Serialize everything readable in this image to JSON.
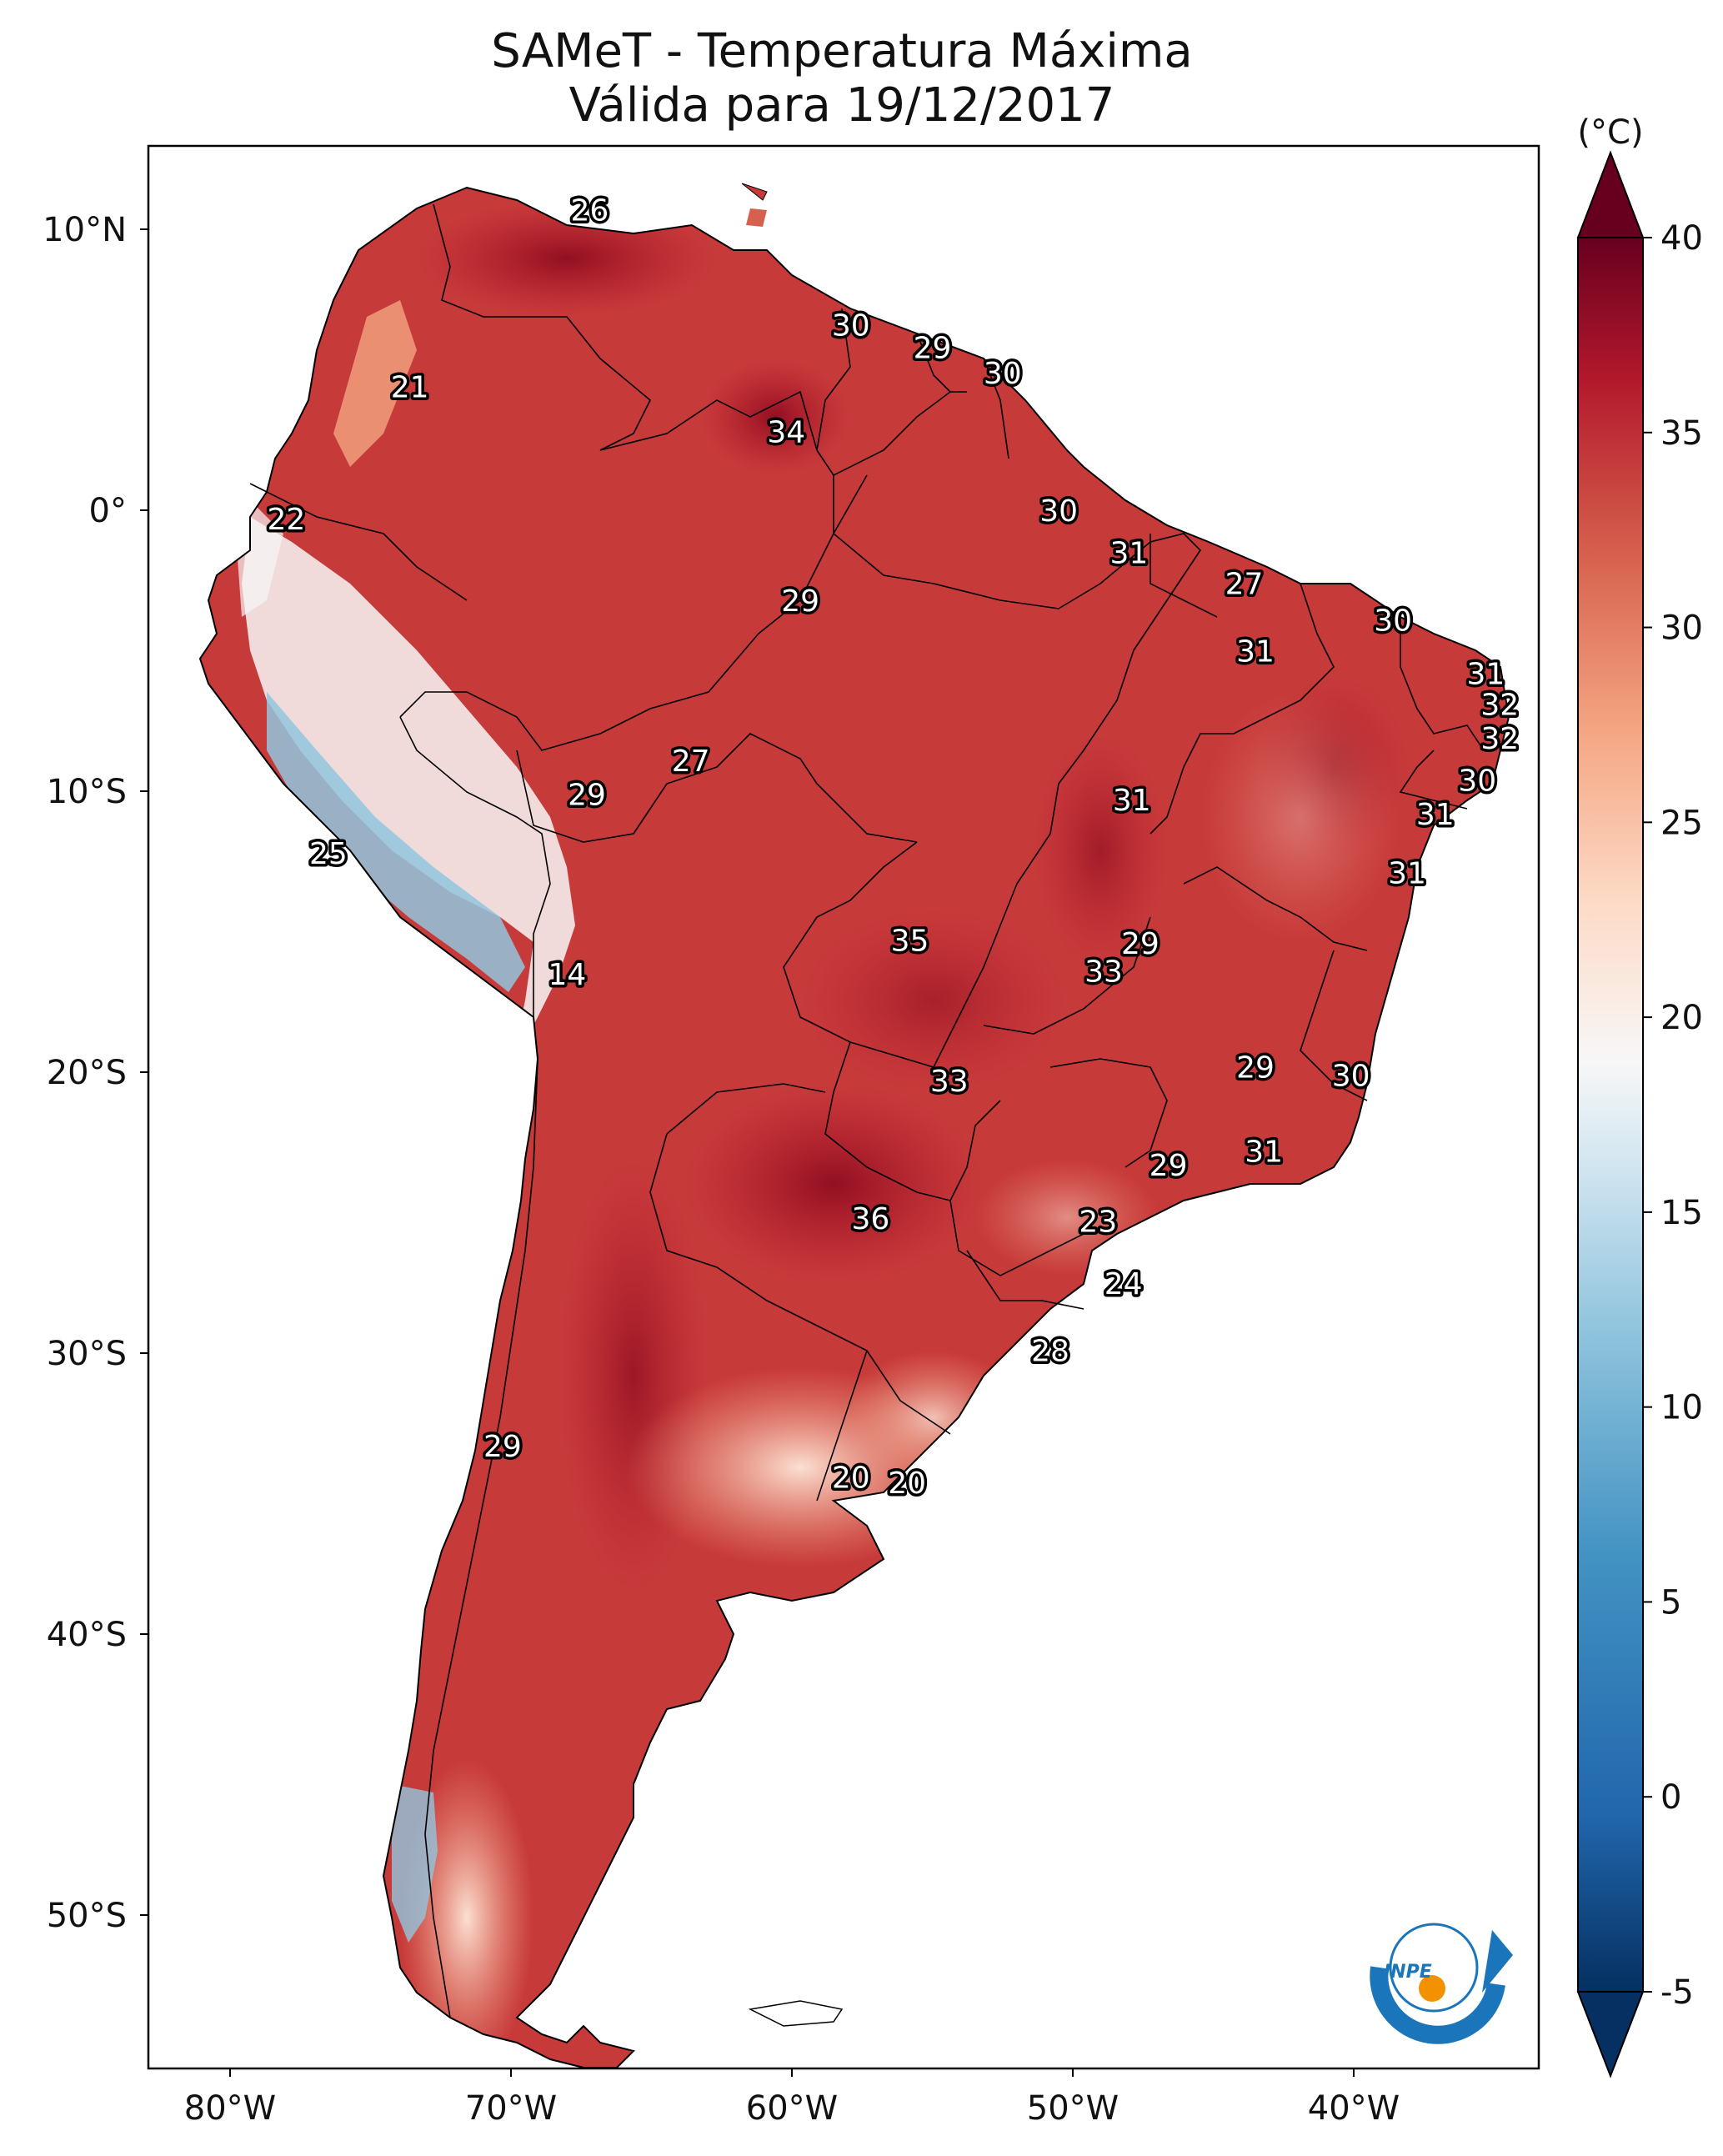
{
  "title_line1": "SAMeT - Temperatura Máxima",
  "title_line2": "Válida para 19/12/2017",
  "colorbar": {
    "unit": "(°C)",
    "ticks": [
      "40",
      "35",
      "30",
      "25",
      "20",
      "15",
      "10",
      "5",
      "0",
      "-5"
    ],
    "range": [
      -5,
      40
    ],
    "colormap": "RdBu_r",
    "colors": {
      "low": "#053061",
      "mid": "#f7f7f7",
      "high": "#67001f"
    }
  },
  "lon_ticks": [
    "80°W",
    "70°W",
    "60°W",
    "50°W",
    "40°W"
  ],
  "lat_ticks": [
    "10°N",
    "0°",
    "10°S",
    "20°S",
    "30°S",
    "40°S",
    "50°S"
  ],
  "logo_text": "INPE",
  "station_labels": [
    {
      "text": "26",
      "lon": -67.2,
      "lat": 10.7
    },
    {
      "text": "21",
      "lon": -73.6,
      "lat": 4.4
    },
    {
      "text": "30",
      "lon": -57.9,
      "lat": 6.6
    },
    {
      "text": "29",
      "lon": -55.0,
      "lat": 5.8
    },
    {
      "text": "30",
      "lon": -52.5,
      "lat": 4.9
    },
    {
      "text": "34",
      "lon": -60.2,
      "lat": 2.8
    },
    {
      "text": "22",
      "lon": -78.0,
      "lat": -0.3
    },
    {
      "text": "30",
      "lon": -50.5,
      "lat": 0.0
    },
    {
      "text": "31",
      "lon": -48.0,
      "lat": -1.5
    },
    {
      "text": "29",
      "lon": -59.7,
      "lat": -3.2
    },
    {
      "text": "27",
      "lon": -43.9,
      "lat": -2.6
    },
    {
      "text": "30",
      "lon": -38.6,
      "lat": -3.9
    },
    {
      "text": "31",
      "lon": -43.5,
      "lat": -5.0
    },
    {
      "text": "31",
      "lon": -35.3,
      "lat": -5.8
    },
    {
      "text": "32",
      "lon": -34.8,
      "lat": -6.9
    },
    {
      "text": "32",
      "lon": -34.8,
      "lat": -8.1
    },
    {
      "text": "27",
      "lon": -63.6,
      "lat": -8.9
    },
    {
      "text": "29",
      "lon": -67.3,
      "lat": -10.1
    },
    {
      "text": "30",
      "lon": -35.6,
      "lat": -9.6
    },
    {
      "text": "31",
      "lon": -47.9,
      "lat": -10.3
    },
    {
      "text": "31",
      "lon": -37.1,
      "lat": -10.8
    },
    {
      "text": "25",
      "lon": -76.5,
      "lat": -12.2
    },
    {
      "text": "31",
      "lon": -38.1,
      "lat": -12.9
    },
    {
      "text": "35",
      "lon": -55.8,
      "lat": -15.3
    },
    {
      "text": "29",
      "lon": -47.6,
      "lat": -15.4
    },
    {
      "text": "14",
      "lon": -68.0,
      "lat": -16.5
    },
    {
      "text": "33",
      "lon": -48.9,
      "lat": -16.4
    },
    {
      "text": "29",
      "lon": -43.5,
      "lat": -19.8
    },
    {
      "text": "30",
      "lon": -40.1,
      "lat": -20.1
    },
    {
      "text": "33",
      "lon": -54.4,
      "lat": -20.3
    },
    {
      "text": "31",
      "lon": -43.2,
      "lat": -22.8
    },
    {
      "text": "29",
      "lon": -46.6,
      "lat": -23.3
    },
    {
      "text": "36",
      "lon": -57.2,
      "lat": -25.2
    },
    {
      "text": "23",
      "lon": -49.1,
      "lat": -25.3
    },
    {
      "text": "24",
      "lon": -48.2,
      "lat": -27.5
    },
    {
      "text": "28",
      "lon": -50.8,
      "lat": -29.9
    },
    {
      "text": "29",
      "lon": -70.3,
      "lat": -33.3
    },
    {
      "text": "20",
      "lon": -57.9,
      "lat": -34.4
    },
    {
      "text": "20",
      "lon": -55.9,
      "lat": -34.6
    }
  ]
}
